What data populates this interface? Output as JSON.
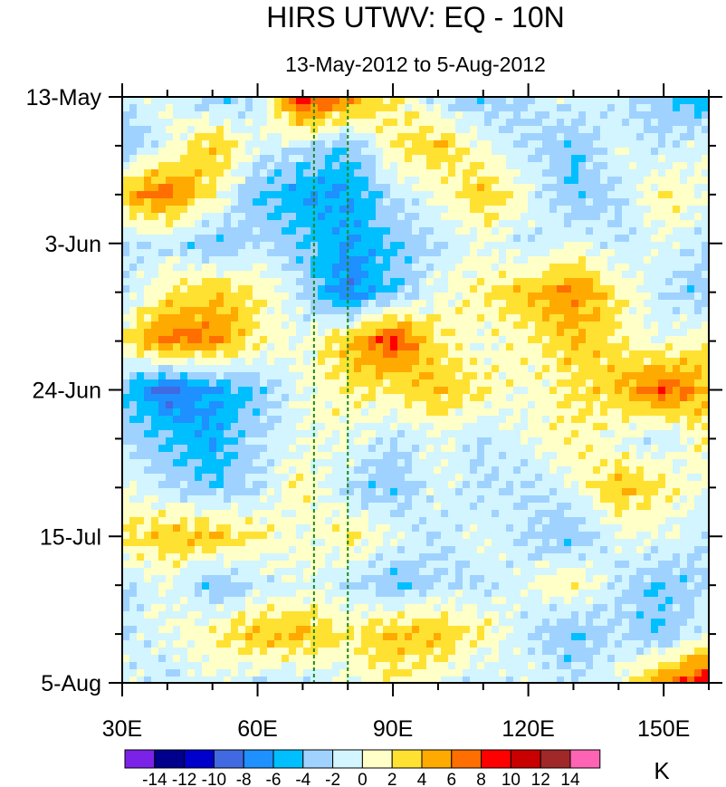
{
  "chart_data": {
    "type": "heatmap",
    "title": "HIRS UTWV: EQ - 10N",
    "subtitle": "13-May-2012 to 5-Aug-2012",
    "xlabel": "",
    "ylabel": "",
    "units_label": "K",
    "x_range": [
      30,
      160
    ],
    "x_ticks": [
      30,
      60,
      90,
      120,
      150
    ],
    "x_tick_labels": [
      "30E",
      "60E",
      "90E",
      "120E",
      "150E"
    ],
    "x_minor_step": 10,
    "y_range_days": [
      0,
      84
    ],
    "y_ticks_days": [
      0,
      21,
      42,
      63,
      84
    ],
    "y_tick_labels": [
      "13-May",
      "3-Jun",
      "24-Jun",
      "15-Jul",
      "5-Aug"
    ],
    "y_minor_step_days": 7,
    "reference_lines_lon": [
      72.5,
      80
    ],
    "reference_line_color": "#1a8a1a",
    "grid_lons": [
      30,
      40,
      50,
      60,
      70,
      80,
      90,
      100,
      110,
      120,
      130,
      140,
      150,
      160
    ],
    "grid_days": [
      0,
      7,
      14,
      21,
      28,
      35,
      42,
      49,
      56,
      63,
      70,
      77,
      84
    ],
    "values": [
      [
        -2,
        0,
        -4,
        -2,
        10,
        6,
        2,
        -2,
        -4,
        -2,
        0,
        -2,
        -4,
        -6
      ],
      [
        -4,
        0,
        4,
        0,
        -2,
        -4,
        2,
        4,
        0,
        -2,
        -4,
        0,
        -2,
        0
      ],
      [
        4,
        7,
        2,
        -4,
        -6,
        -6,
        -2,
        0,
        4,
        0,
        -4,
        -2,
        2,
        0
      ],
      [
        -2,
        -2,
        -4,
        -2,
        -4,
        -6,
        -4,
        -2,
        0,
        -2,
        0,
        -2,
        0,
        -2
      ],
      [
        -2,
        2,
        4,
        2,
        -2,
        -8,
        -4,
        0,
        2,
        4,
        6,
        2,
        -2,
        -4
      ],
      [
        2,
        7,
        6,
        2,
        0,
        4,
        9,
        2,
        0,
        2,
        4,
        2,
        0,
        2
      ],
      [
        -4,
        -9,
        -6,
        -4,
        0,
        2,
        2,
        4,
        2,
        0,
        2,
        4,
        8,
        4
      ],
      [
        -2,
        -4,
        -6,
        -2,
        0,
        0,
        -2,
        0,
        -2,
        0,
        2,
        0,
        -2,
        2
      ],
      [
        0,
        -2,
        -4,
        -2,
        2,
        -2,
        -4,
        0,
        -2,
        -2,
        0,
        4,
        2,
        0
      ],
      [
        2,
        4,
        4,
        2,
        0,
        2,
        0,
        -2,
        0,
        -2,
        -4,
        0,
        0,
        -2
      ],
      [
        -2,
        0,
        -4,
        -2,
        0,
        -2,
        -4,
        -2,
        -2,
        0,
        2,
        -2,
        -4,
        -2
      ],
      [
        -2,
        0,
        2,
        4,
        4,
        2,
        4,
        4,
        2,
        -2,
        -4,
        -2,
        -4,
        0
      ],
      [
        0,
        -2,
        0,
        -2,
        -2,
        0,
        2,
        0,
        -2,
        0,
        -2,
        0,
        6,
        10
      ]
    ],
    "levels": [
      -14,
      -12,
      -10,
      -8,
      -6,
      -4,
      -2,
      0,
      2,
      4,
      6,
      8,
      10,
      12,
      14
    ],
    "level_labels": [
      "-14",
      "-12",
      "-10",
      "-8",
      "-6",
      "-4",
      "-2",
      "0",
      "2",
      "4",
      "6",
      "8",
      "10",
      "12",
      "14"
    ],
    "colors": [
      "#7b22e8",
      "#00008c",
      "#0000cd",
      "#4169e1",
      "#1e90ff",
      "#00bfff",
      "#a0d2ff",
      "#d2f5ff",
      "#ffffc8",
      "#ffe132",
      "#ffaa00",
      "#ff6e00",
      "#ff0000",
      "#c80000",
      "#a02828",
      "#ff64b4"
    ]
  }
}
